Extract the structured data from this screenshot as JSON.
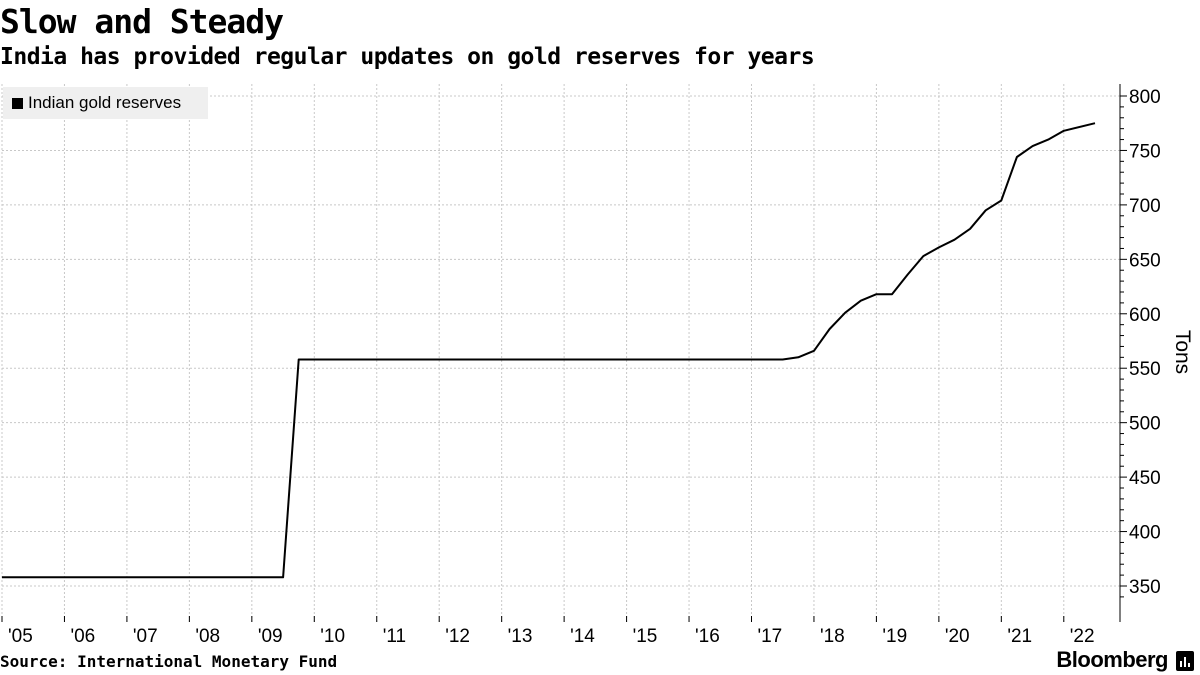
{
  "title": "Slow and Steady",
  "subtitle": "India has provided regular updates on gold reserves for years",
  "source": "Source: International Monetary Fund",
  "brand": "Bloomberg",
  "brand_icon": "bloomberg-chart-icon",
  "chart_data": {
    "type": "line",
    "title": "Slow and Steady",
    "subtitle": "India has provided regular updates on gold reserves for years",
    "ylabel": "Tons",
    "xlabel": "",
    "ylim": [
      325,
      810
    ],
    "xlim": [
      2005.0,
      2022.9
    ],
    "grid": true,
    "legend_position": "top-left",
    "y_axis_side": "right",
    "line_color": "#000000",
    "y_ticks": [
      350,
      400,
      450,
      500,
      550,
      600,
      650,
      700,
      750,
      800
    ],
    "x_ticks": [
      {
        "label": "'05",
        "value": 2005.0
      },
      {
        "label": "'06",
        "value": 2006.0
      },
      {
        "label": "'07",
        "value": 2007.0
      },
      {
        "label": "'08",
        "value": 2008.0
      },
      {
        "label": "'09",
        "value": 2009.0
      },
      {
        "label": "'10",
        "value": 2010.0
      },
      {
        "label": "'11",
        "value": 2011.0
      },
      {
        "label": "'12",
        "value": 2012.0
      },
      {
        "label": "'13",
        "value": 2013.0
      },
      {
        "label": "'14",
        "value": 2014.0
      },
      {
        "label": "'15",
        "value": 2015.0
      },
      {
        "label": "'16",
        "value": 2016.0
      },
      {
        "label": "'17",
        "value": 2017.0
      },
      {
        "label": "'18",
        "value": 2018.0
      },
      {
        "label": "'19",
        "value": 2019.0
      },
      {
        "label": "'20",
        "value": 2020.0
      },
      {
        "label": "'21",
        "value": 2021.0
      },
      {
        "label": "'22",
        "value": 2022.0
      }
    ],
    "series": [
      {
        "name": "Indian gold reserves",
        "x": [
          2005.0,
          2009.5,
          2009.75,
          2017.5,
          2017.75,
          2018.0,
          2018.25,
          2018.5,
          2018.75,
          2019.0,
          2019.25,
          2019.5,
          2019.75,
          2020.0,
          2020.25,
          2020.5,
          2020.75,
          2021.0,
          2021.25,
          2021.5,
          2021.75,
          2022.0,
          2022.5
        ],
        "values": [
          358,
          358,
          558,
          558,
          560,
          566,
          586,
          601,
          612,
          618,
          618,
          636,
          653,
          661,
          668,
          678,
          695,
          704,
          744,
          754,
          760,
          768,
          775
        ]
      }
    ]
  }
}
